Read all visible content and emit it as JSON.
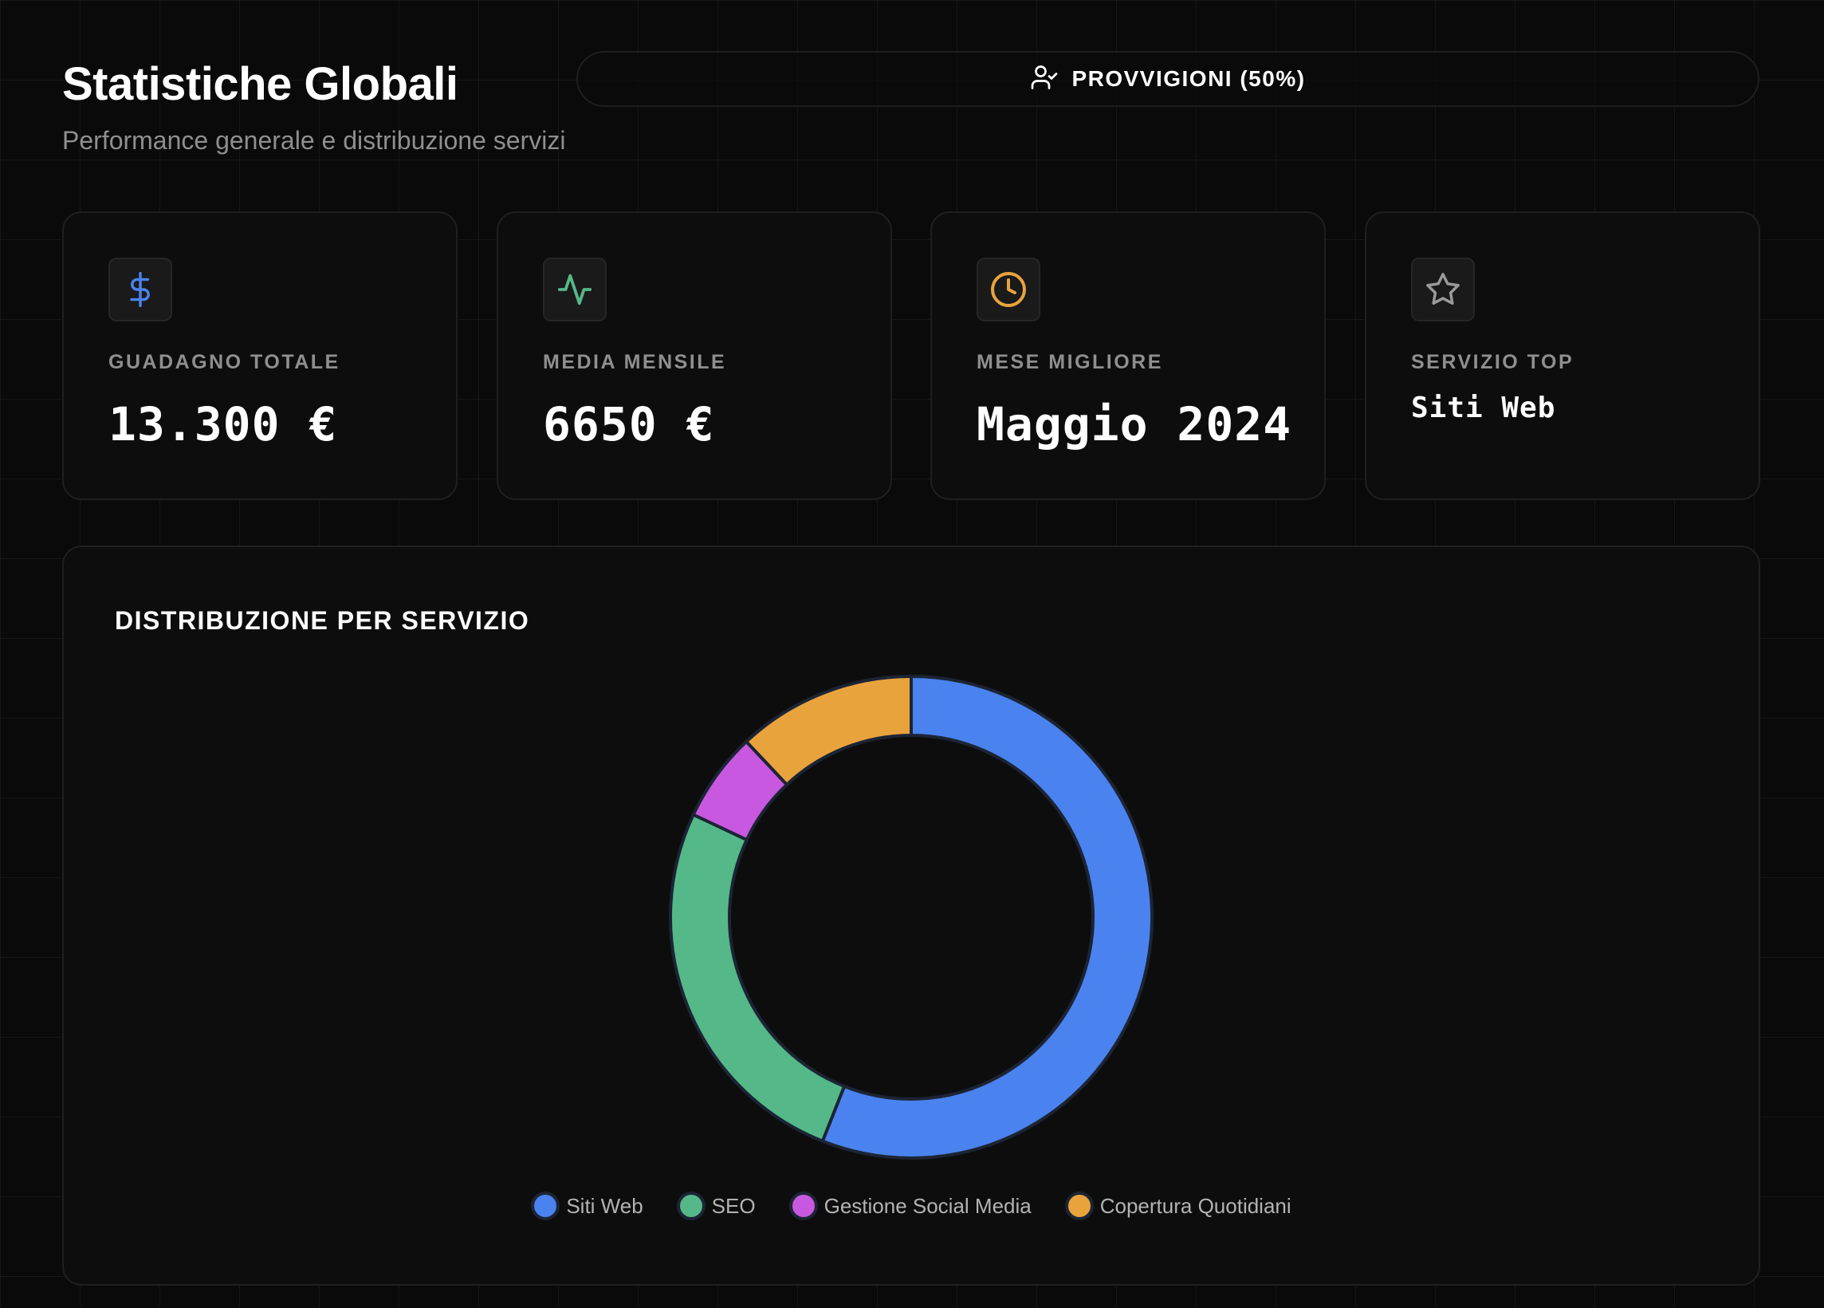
{
  "header": {
    "title": "Statistiche Globali",
    "subtitle": "Performance generale e distribuzione servizi"
  },
  "role_selector": {
    "label": "PROVVIGIONI (50%)",
    "icon": "user-check-icon"
  },
  "stats": [
    {
      "label": "GUADAGNO TOTALE",
      "value": "13.300 €",
      "icon": "dollar-icon",
      "icon_color": "#4a83ef"
    },
    {
      "label": "MEDIA MENSILE",
      "value": "6650 €",
      "icon": "activity-icon",
      "icon_color": "#55b888"
    },
    {
      "label": "MESE MIGLIORE",
      "value": "Maggio 2024",
      "icon": "clock-icon",
      "icon_color": "#e9a33d"
    },
    {
      "label": "SERVIZIO TOP",
      "value": "Siti Web",
      "icon": "star-icon",
      "icon_color": "#9a9a9a"
    }
  ],
  "chart": {
    "title": "DISTRIBUZIONE PER SERVIZIO"
  },
  "chart_data": {
    "type": "pie",
    "categories": [
      "Siti Web",
      "SEO",
      "Gestione Social Media",
      "Copertura Quotidiani"
    ],
    "values": [
      56,
      26,
      6,
      12
    ],
    "colors": [
      "#4a83ef",
      "#55b888",
      "#c958e0",
      "#e9a33d"
    ],
    "legend_position": "bottom"
  }
}
